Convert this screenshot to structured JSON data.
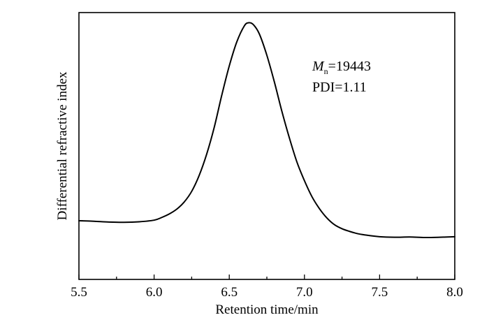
{
  "chart_data": {
    "type": "line",
    "xlabel": "Retention time/min",
    "ylabel": "Differential refractive index",
    "xlim": [
      5.5,
      8.0
    ],
    "x_ticks": [
      "5.5",
      "6.0",
      "6.5",
      "7.0",
      "7.5",
      "8.0"
    ],
    "y_ticks_labeled": false,
    "ylim": [
      0,
      1
    ],
    "grid": false,
    "legend": "none",
    "annotations": {
      "mn_symbol": "M",
      "mn_subscript": "n",
      "mn_value": "=19443",
      "pdi": "PDI=1.11"
    },
    "series": [
      {
        "x": [
          5.5,
          5.6,
          5.7,
          5.8,
          5.9,
          6.0,
          6.05,
          6.1,
          6.15,
          6.2,
          6.25,
          6.3,
          6.35,
          6.4,
          6.45,
          6.5,
          6.55,
          6.6,
          6.63,
          6.66,
          6.7,
          6.75,
          6.8,
          6.85,
          6.9,
          6.95,
          7.0,
          7.05,
          7.1,
          7.15,
          7.2,
          7.25,
          7.3,
          7.35,
          7.4,
          7.5,
          7.6,
          7.7,
          7.8,
          7.9,
          8.0
        ],
        "y": [
          0.22,
          0.218,
          0.215,
          0.214,
          0.216,
          0.222,
          0.232,
          0.245,
          0.263,
          0.29,
          0.33,
          0.39,
          0.47,
          0.57,
          0.69,
          0.8,
          0.89,
          0.95,
          0.962,
          0.955,
          0.92,
          0.84,
          0.74,
          0.63,
          0.53,
          0.44,
          0.37,
          0.31,
          0.265,
          0.23,
          0.205,
          0.19,
          0.18,
          0.172,
          0.167,
          0.16,
          0.158,
          0.159,
          0.157,
          0.158,
          0.16
        ]
      }
    ]
  }
}
